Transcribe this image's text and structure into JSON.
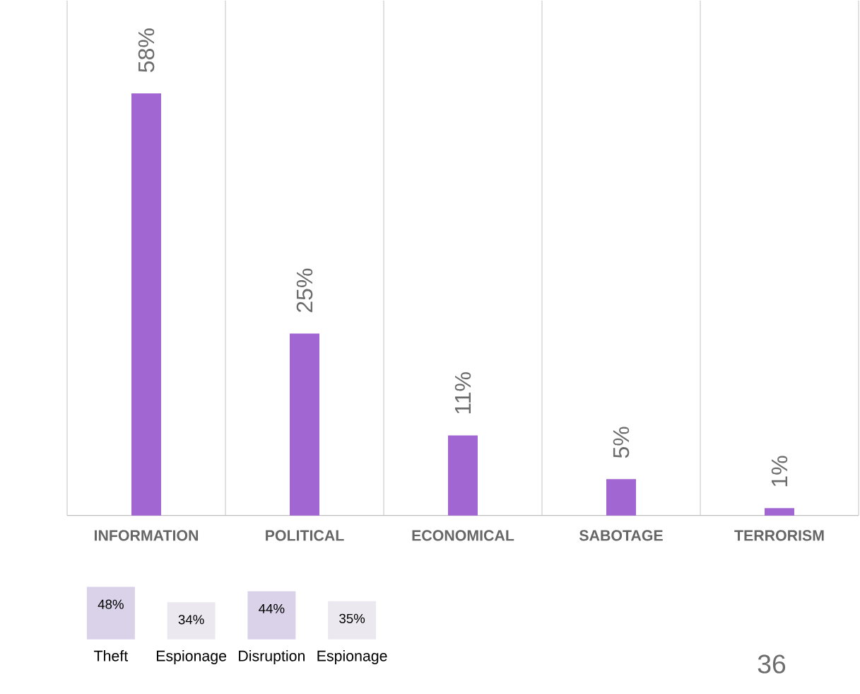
{
  "chart_data": [
    {
      "type": "bar",
      "categories": [
        "INFORMATION",
        "POLITICAL",
        "ECONOMICAL",
        "SABOTAGE",
        "TERRORISM"
      ],
      "values": [
        58,
        25,
        11,
        5,
        1
      ],
      "value_labels": [
        "58%",
        "25%",
        "11%",
        "5%",
        "1%"
      ],
      "color": "#a266d2",
      "grid": "x",
      "annotations": [
        "36"
      ]
    },
    {
      "type": "bar",
      "categories": [
        "Theft",
        "Espionage",
        "Disruption",
        "Espionage"
      ],
      "values": [
        48,
        34,
        44,
        35
      ],
      "value_labels": [
        "48%",
        "34%",
        "44%",
        "35%"
      ],
      "colors": [
        "#d9d2e9",
        "#ebe9ef",
        "#d9d2e9",
        "#ebe9ef"
      ]
    }
  ]
}
